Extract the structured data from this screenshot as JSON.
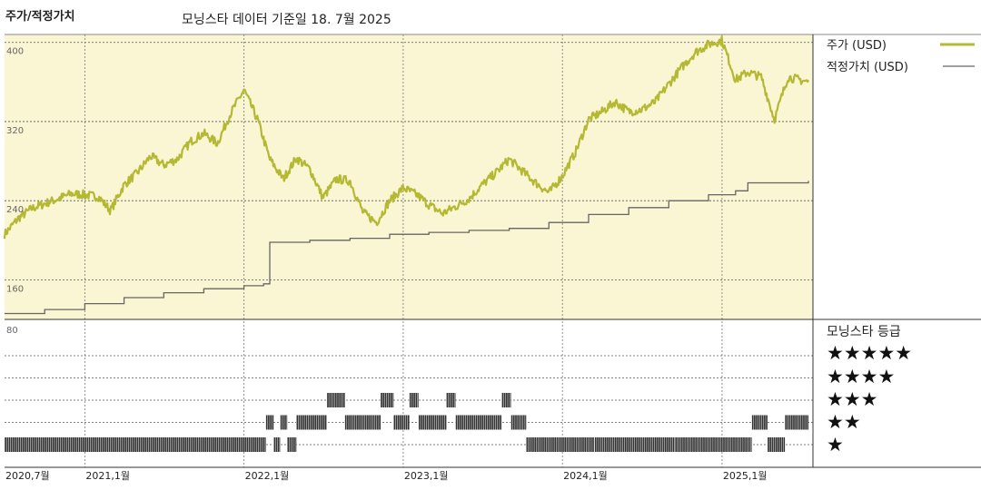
{
  "header": {
    "title": "주가/적정가치",
    "subtitle": "모닝스타 데이터 기준일 18. 7월 2025"
  },
  "legend": {
    "price_label": "주가 (USD)",
    "fair_label": "적정가치 (USD)",
    "rating_title": "모닝스타 등급"
  },
  "colors": {
    "price": "#b5b833",
    "fair": "#666666",
    "upper_bg": "#faf5d2",
    "rating_bar": "#111111"
  },
  "chart_data": [
    {
      "type": "line",
      "title": "",
      "ylabel": "",
      "ylim": [
        120,
        408
      ],
      "yticks": [
        160,
        240,
        320,
        400
      ],
      "grid": true,
      "legend_position": "right",
      "x_range": [
        "2020-07-01",
        "2025-07-18"
      ],
      "xtick_labels": [
        "2020,7월",
        "2021,1월",
        "2022,1월",
        "2023,1월",
        "2024,1월",
        "2025,1월"
      ],
      "series": [
        {
          "name": "주가 (USD)",
          "x": [
            "2020-07-01",
            "2020-08-01",
            "2020-09-01",
            "2020-10-01",
            "2020-11-01",
            "2020-12-01",
            "2021-01-01",
            "2021-02-01",
            "2021-03-01",
            "2021-04-01",
            "2021-05-01",
            "2021-06-01",
            "2021-07-01",
            "2021-08-01",
            "2021-09-01",
            "2021-10-01",
            "2021-11-01",
            "2021-12-01",
            "2022-01-01",
            "2022-02-01",
            "2022-03-01",
            "2022-04-01",
            "2022-05-01",
            "2022-06-01",
            "2022-07-01",
            "2022-08-01",
            "2022-09-01",
            "2022-10-01",
            "2022-11-01",
            "2022-12-01",
            "2023-01-01",
            "2023-02-01",
            "2023-03-01",
            "2023-04-01",
            "2023-05-01",
            "2023-06-01",
            "2023-07-01",
            "2023-08-01",
            "2023-09-01",
            "2023-10-01",
            "2023-11-01",
            "2023-12-01",
            "2024-01-01",
            "2024-02-01",
            "2024-03-01",
            "2024-04-01",
            "2024-05-01",
            "2024-06-01",
            "2024-07-01",
            "2024-08-01",
            "2024-09-01",
            "2024-10-01",
            "2024-11-01",
            "2024-12-01",
            "2025-01-01",
            "2025-02-01",
            "2025-03-01",
            "2025-04-01",
            "2025-05-01",
            "2025-06-01",
            "2025-07-18"
          ],
          "values": [
            206,
            222,
            232,
            237,
            242,
            247,
            246,
            244,
            230,
            256,
            268,
            285,
            276,
            282,
            300,
            308,
            298,
            328,
            352,
            322,
            282,
            262,
            283,
            272,
            243,
            262,
            260,
            228,
            218,
            240,
            253,
            246,
            236,
            227,
            234,
            242,
            256,
            268,
            282,
            270,
            258,
            248,
            265,
            290,
            322,
            330,
            340,
            330,
            332,
            340,
            358,
            375,
            390,
            398,
            402,
            362,
            370,
            365,
            322,
            365,
            360
          ]
        },
        {
          "name": "적정가치 (USD)",
          "x": [
            "2020-07-01",
            "2020-10-01",
            "2021-01-01",
            "2021-04-01",
            "2021-07-01",
            "2021-10-01",
            "2022-01-01",
            "2022-02-15",
            "2022-03-01",
            "2022-06-01",
            "2022-09-01",
            "2022-12-01",
            "2023-03-01",
            "2023-06-01",
            "2023-09-01",
            "2023-12-01",
            "2024-03-01",
            "2024-06-01",
            "2024-09-01",
            "2024-12-01",
            "2025-02-01",
            "2025-03-01",
            "2025-07-18"
          ],
          "values": [
            126,
            130,
            136,
            142,
            147,
            151,
            154,
            156,
            198,
            200,
            202,
            206,
            208,
            210,
            212,
            218,
            226,
            233,
            240,
            246,
            250,
            258,
            260
          ],
          "step": true
        }
      ]
    },
    {
      "type": "bar",
      "title": "",
      "chart_subtype": "rating-timeline",
      "ylim": [
        0,
        5
      ],
      "yticks_top_label": "80",
      "levels": [
        "★★★★★",
        "★★★★",
        "★★★",
        "★★",
        "★"
      ],
      "series": [
        {
          "name": "모닝스타 등급",
          "segments": [
            {
              "from": "2020-07-01",
              "to": "2022-02-20",
              "rating": 1
            },
            {
              "from": "2022-02-20",
              "to": "2022-03-10",
              "rating": 2
            },
            {
              "from": "2022-03-10",
              "to": "2022-03-25",
              "rating": 1
            },
            {
              "from": "2022-03-25",
              "to": "2022-04-10",
              "rating": 2
            },
            {
              "from": "2022-04-10",
              "to": "2022-05-01",
              "rating": 1
            },
            {
              "from": "2022-05-01",
              "to": "2022-07-10",
              "rating": 2
            },
            {
              "from": "2022-07-10",
              "to": "2022-08-20",
              "rating": 3
            },
            {
              "from": "2022-08-20",
              "to": "2022-11-10",
              "rating": 2
            },
            {
              "from": "2022-11-10",
              "to": "2022-12-10",
              "rating": 3
            },
            {
              "from": "2022-12-10",
              "to": "2023-01-15",
              "rating": 2
            },
            {
              "from": "2023-01-15",
              "to": "2023-02-05",
              "rating": 3
            },
            {
              "from": "2023-02-05",
              "to": "2023-04-10",
              "rating": 2
            },
            {
              "from": "2023-04-10",
              "to": "2023-05-01",
              "rating": 3
            },
            {
              "from": "2023-05-01",
              "to": "2023-08-15",
              "rating": 2
            },
            {
              "from": "2023-08-15",
              "to": "2023-09-05",
              "rating": 3
            },
            {
              "from": "2023-09-05",
              "to": "2023-10-10",
              "rating": 2
            },
            {
              "from": "2023-10-10",
              "to": "2024-03-15",
              "rating": 1
            },
            {
              "from": "2024-03-15",
              "to": "2024-09-15",
              "rating": 1
            },
            {
              "from": "2024-09-15",
              "to": "2025-03-10",
              "rating": 1
            },
            {
              "from": "2025-03-10",
              "to": "2025-04-15",
              "rating": 2
            },
            {
              "from": "2025-04-15",
              "to": "2025-05-25",
              "rating": 1
            },
            {
              "from": "2025-05-25",
              "to": "2025-07-18",
              "rating": 2
            }
          ]
        }
      ]
    }
  ]
}
